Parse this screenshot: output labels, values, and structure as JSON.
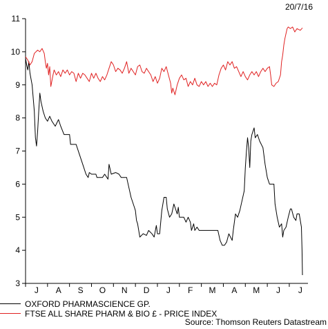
{
  "header": {
    "date": "20/7/16"
  },
  "chart_data": {
    "type": "line",
    "ylim": [
      3,
      11
    ],
    "yticks": [
      3,
      4,
      5,
      6,
      7,
      8,
      9,
      10,
      11
    ],
    "xticklabels": [
      "J",
      "A",
      "S",
      "O",
      "N",
      "D",
      "J",
      "F",
      "M",
      "A",
      "M",
      "J",
      "J"
    ],
    "xlim": [
      0,
      12.85
    ],
    "series": [
      {
        "name": "OXFORD PHARMASCIENCE GP.",
        "color": "#000000",
        "points": [
          [
            0.0,
            9.8
          ],
          [
            0.05,
            9.6
          ],
          [
            0.1,
            9.45
          ],
          [
            0.15,
            9.7
          ],
          [
            0.2,
            9.35
          ],
          [
            0.3,
            9.0
          ],
          [
            0.4,
            8.2
          ],
          [
            0.45,
            7.4
          ],
          [
            0.5,
            7.15
          ],
          [
            0.55,
            7.6
          ],
          [
            0.6,
            8.2
          ],
          [
            0.65,
            8.75
          ],
          [
            0.7,
            8.5
          ],
          [
            0.8,
            8.2
          ],
          [
            0.9,
            8.0
          ],
          [
            1.0,
            7.9
          ],
          [
            1.1,
            8.05
          ],
          [
            1.2,
            7.9
          ],
          [
            1.35,
            7.75
          ],
          [
            1.5,
            7.95
          ],
          [
            1.6,
            7.75
          ],
          [
            1.75,
            7.5
          ],
          [
            1.85,
            7.5
          ],
          [
            2.0,
            7.5
          ],
          [
            2.05,
            7.2
          ],
          [
            2.3,
            7.2
          ],
          [
            2.45,
            6.9
          ],
          [
            2.6,
            6.6
          ],
          [
            2.75,
            6.3
          ],
          [
            2.85,
            6.2
          ],
          [
            2.9,
            6.35
          ],
          [
            3.0,
            6.3
          ],
          [
            3.2,
            6.3
          ],
          [
            3.25,
            6.2
          ],
          [
            3.5,
            6.2
          ],
          [
            3.6,
            6.3
          ],
          [
            3.75,
            6.15
          ],
          [
            3.8,
            6.6
          ],
          [
            3.9,
            6.3
          ],
          [
            4.1,
            6.35
          ],
          [
            4.25,
            6.3
          ],
          [
            4.35,
            6.2
          ],
          [
            4.6,
            6.2
          ],
          [
            4.7,
            5.9
          ],
          [
            4.8,
            5.6
          ],
          [
            4.95,
            5.3
          ],
          [
            5.0,
            5.2
          ],
          [
            5.05,
            4.9
          ],
          [
            5.1,
            4.8
          ],
          [
            5.15,
            4.6
          ],
          [
            5.2,
            4.4
          ],
          [
            5.35,
            4.5
          ],
          [
            5.5,
            4.45
          ],
          [
            5.6,
            4.6
          ],
          [
            5.75,
            4.5
          ],
          [
            5.85,
            4.4
          ],
          [
            5.95,
            4.75
          ],
          [
            6.0,
            4.5
          ],
          [
            6.1,
            4.5
          ],
          [
            6.2,
            5.2
          ],
          [
            6.3,
            5.6
          ],
          [
            6.4,
            5.6
          ],
          [
            6.45,
            5.25
          ],
          [
            6.55,
            5.0
          ],
          [
            6.65,
            5.1
          ],
          [
            6.75,
            5.4
          ],
          [
            6.9,
            5.1
          ],
          [
            6.95,
            5.3
          ],
          [
            7.0,
            5.0
          ],
          [
            7.2,
            5.0
          ],
          [
            7.3,
            4.85
          ],
          [
            7.4,
            5.0
          ],
          [
            7.5,
            4.85
          ],
          [
            7.55,
            4.6
          ],
          [
            7.65,
            4.8
          ],
          [
            7.7,
            4.6
          ],
          [
            7.8,
            4.7
          ],
          [
            7.9,
            4.6
          ],
          [
            8.1,
            4.6
          ],
          [
            8.4,
            4.6
          ],
          [
            8.75,
            4.6
          ],
          [
            8.85,
            4.3
          ],
          [
            8.95,
            4.15
          ],
          [
            9.05,
            4.15
          ],
          [
            9.15,
            4.25
          ],
          [
            9.25,
            4.5
          ],
          [
            9.4,
            4.3
          ],
          [
            9.45,
            4.6
          ],
          [
            9.55,
            5.1
          ],
          [
            9.65,
            5.0
          ],
          [
            9.75,
            5.2
          ],
          [
            9.85,
            5.5
          ],
          [
            9.95,
            5.8
          ],
          [
            10.0,
            6.5
          ],
          [
            10.05,
            7.0
          ],
          [
            10.1,
            7.4
          ],
          [
            10.15,
            7.1
          ],
          [
            10.2,
            6.5
          ],
          [
            10.25,
            7.3
          ],
          [
            10.3,
            7.5
          ],
          [
            10.35,
            7.6
          ],
          [
            10.4,
            7.7
          ],
          [
            10.45,
            7.4
          ],
          [
            10.55,
            7.5
          ],
          [
            10.65,
            7.3
          ],
          [
            10.8,
            7.1
          ],
          [
            10.9,
            6.6
          ],
          [
            11.0,
            6.2
          ],
          [
            11.1,
            6.0
          ],
          [
            11.2,
            6.0
          ],
          [
            11.3,
            6.0
          ],
          [
            11.35,
            5.4
          ],
          [
            11.45,
            5.0
          ],
          [
            11.55,
            4.7
          ],
          [
            11.65,
            4.8
          ],
          [
            11.7,
            4.4
          ],
          [
            11.75,
            4.6
          ],
          [
            11.85,
            4.7
          ],
          [
            11.95,
            5.0
          ],
          [
            12.05,
            5.25
          ],
          [
            12.1,
            5.25
          ],
          [
            12.2,
            5.0
          ],
          [
            12.3,
            4.9
          ],
          [
            12.35,
            5.1
          ],
          [
            12.45,
            5.1
          ],
          [
            12.5,
            4.9
          ],
          [
            12.55,
            4.7
          ],
          [
            12.58,
            4.0
          ],
          [
            12.6,
            3.25
          ]
        ]
      },
      {
        "name": "FTSE ALL SHARE PHARM & BIO £ - PRICE INDEX",
        "color": "#e02020",
        "points": [
          [
            0.0,
            9.85
          ],
          [
            0.1,
            9.75
          ],
          [
            0.2,
            9.6
          ],
          [
            0.3,
            9.7
          ],
          [
            0.4,
            9.95
          ],
          [
            0.55,
            10.05
          ],
          [
            0.65,
            10.0
          ],
          [
            0.75,
            10.1
          ],
          [
            0.85,
            9.95
          ],
          [
            0.9,
            9.7
          ],
          [
            0.95,
            9.5
          ],
          [
            1.0,
            9.65
          ],
          [
            1.05,
            9.3
          ],
          [
            1.1,
            9.55
          ],
          [
            1.15,
            8.95
          ],
          [
            1.25,
            9.3
          ],
          [
            1.3,
            9.45
          ],
          [
            1.4,
            9.3
          ],
          [
            1.5,
            9.4
          ],
          [
            1.6,
            9.25
          ],
          [
            1.7,
            9.45
          ],
          [
            1.8,
            9.35
          ],
          [
            1.9,
            9.45
          ],
          [
            2.0,
            9.3
          ],
          [
            2.1,
            9.4
          ],
          [
            2.2,
            9.35
          ],
          [
            2.3,
            9.1
          ],
          [
            2.4,
            9.35
          ],
          [
            2.5,
            9.2
          ],
          [
            2.6,
            9.35
          ],
          [
            2.7,
            9.3
          ],
          [
            2.8,
            9.2
          ],
          [
            2.9,
            9.1
          ],
          [
            3.0,
            9.35
          ],
          [
            3.1,
            9.2
          ],
          [
            3.2,
            9.35
          ],
          [
            3.3,
            9.2
          ],
          [
            3.4,
            9.1
          ],
          [
            3.5,
            9.25
          ],
          [
            3.6,
            9.15
          ],
          [
            3.7,
            9.3
          ],
          [
            3.8,
            9.5
          ],
          [
            3.9,
            9.7
          ],
          [
            4.0,
            9.6
          ],
          [
            4.1,
            9.4
          ],
          [
            4.2,
            9.5
          ],
          [
            4.3,
            9.45
          ],
          [
            4.4,
            9.35
          ],
          [
            4.5,
            9.5
          ],
          [
            4.6,
            9.7
          ],
          [
            4.7,
            9.35
          ],
          [
            4.8,
            9.5
          ],
          [
            4.9,
            9.4
          ],
          [
            5.0,
            9.3
          ],
          [
            5.1,
            9.55
          ],
          [
            5.2,
            9.6
          ],
          [
            5.3,
            9.4
          ],
          [
            5.4,
            9.35
          ],
          [
            5.5,
            9.5
          ],
          [
            5.6,
            9.4
          ],
          [
            5.7,
            9.3
          ],
          [
            5.8,
            9.1
          ],
          [
            5.9,
            9.25
          ],
          [
            6.0,
            9.05
          ],
          [
            6.1,
            9.2
          ],
          [
            6.2,
            9.5
          ],
          [
            6.3,
            9.4
          ],
          [
            6.4,
            9.55
          ],
          [
            6.5,
            9.3
          ],
          [
            6.6,
            9.05
          ],
          [
            6.65,
            8.75
          ],
          [
            6.7,
            8.9
          ],
          [
            6.8,
            8.7
          ],
          [
            6.9,
            9.0
          ],
          [
            7.0,
            9.2
          ],
          [
            7.1,
            9.3
          ],
          [
            7.2,
            9.15
          ],
          [
            7.3,
            9.2
          ],
          [
            7.4,
            8.95
          ],
          [
            7.5,
            9.1
          ],
          [
            7.6,
            9.0
          ],
          [
            7.7,
            9.2
          ],
          [
            7.8,
            9.0
          ],
          [
            7.9,
            8.95
          ],
          [
            8.0,
            9.1
          ],
          [
            8.1,
            9.0
          ],
          [
            8.2,
            9.1
          ],
          [
            8.3,
            8.95
          ],
          [
            8.4,
            9.05
          ],
          [
            8.5,
            8.95
          ],
          [
            8.6,
            9.05
          ],
          [
            8.7,
            9.0
          ],
          [
            8.8,
            9.3
          ],
          [
            8.9,
            9.5
          ],
          [
            9.0,
            9.6
          ],
          [
            9.1,
            9.45
          ],
          [
            9.2,
            9.7
          ],
          [
            9.3,
            9.6
          ],
          [
            9.4,
            9.7
          ],
          [
            9.5,
            9.5
          ],
          [
            9.6,
            9.55
          ],
          [
            9.7,
            9.4
          ],
          [
            9.8,
            9.25
          ],
          [
            9.9,
            9.4
          ],
          [
            10.0,
            9.25
          ],
          [
            10.1,
            9.15
          ],
          [
            10.2,
            9.3
          ],
          [
            10.3,
            9.4
          ],
          [
            10.4,
            9.3
          ],
          [
            10.5,
            9.4
          ],
          [
            10.6,
            9.25
          ],
          [
            10.7,
            9.4
          ],
          [
            10.8,
            9.5
          ],
          [
            10.9,
            9.4
          ],
          [
            11.0,
            9.5
          ],
          [
            11.1,
            9.55
          ],
          [
            11.15,
            9.3
          ],
          [
            11.2,
            9.0
          ],
          [
            11.3,
            8.95
          ],
          [
            11.4,
            9.05
          ],
          [
            11.5,
            9.1
          ],
          [
            11.6,
            9.3
          ],
          [
            11.65,
            9.7
          ],
          [
            11.7,
            9.9
          ],
          [
            11.75,
            10.2
          ],
          [
            11.8,
            10.4
          ],
          [
            11.85,
            10.55
          ],
          [
            11.9,
            10.7
          ],
          [
            11.95,
            10.75
          ],
          [
            12.05,
            10.7
          ],
          [
            12.15,
            10.75
          ],
          [
            12.25,
            10.6
          ],
          [
            12.35,
            10.7
          ],
          [
            12.5,
            10.65
          ],
          [
            12.6,
            10.72
          ]
        ]
      }
    ]
  },
  "footer": {
    "source": "Source: Thomson Reuters Datastream"
  }
}
